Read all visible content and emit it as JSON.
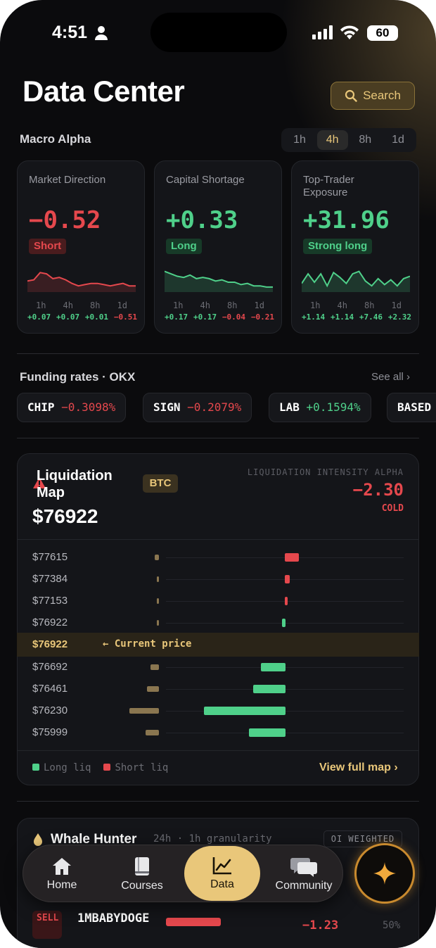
{
  "status": {
    "time": "4:51",
    "battery": "60"
  },
  "header": {
    "title": "Data Center",
    "search_label": "Search"
  },
  "macro": {
    "title": "Macro Alpha",
    "timeframes": [
      "1h",
      "4h",
      "8h",
      "1d"
    ],
    "active_timeframe": "4h",
    "cards": [
      {
        "label": "Market Direction",
        "value": "−0.52",
        "badge": "Short",
        "tf": [
          "1h",
          "4h",
          "8h",
          "1d"
        ],
        "deltas": [
          "+0.07",
          "+0.07",
          "+0.01",
          "−0.51"
        ],
        "delta_colors": [
          "#4fd08a",
          "#4fd08a",
          "#4fd08a",
          "#e5484d"
        ],
        "spark": [
          0.4,
          0.45,
          0.75,
          0.7,
          0.5,
          0.55,
          0.45,
          0.3,
          0.2,
          0.25,
          0.3,
          0.3,
          0.25,
          0.2,
          0.25,
          0.3,
          0.2,
          0.2
        ],
        "color": "#e5484d"
      },
      {
        "label": "Capital Shortage",
        "value": "+0.33",
        "badge": "Long",
        "tf": [
          "1h",
          "4h",
          "8h",
          "1d"
        ],
        "deltas": [
          "+0.17",
          "+0.17",
          "−0.04",
          "−0.21"
        ],
        "delta_colors": [
          "#4fd08a",
          "#4fd08a",
          "#e5484d",
          "#e5484d"
        ],
        "spark": [
          0.8,
          0.7,
          0.6,
          0.55,
          0.65,
          0.5,
          0.55,
          0.5,
          0.4,
          0.45,
          0.35,
          0.35,
          0.25,
          0.3,
          0.2,
          0.2,
          0.15,
          0.15
        ],
        "color": "#4fd08a"
      },
      {
        "label": "Top-Trader Exposure",
        "value": "+31.96",
        "badge": "Strong long",
        "tf": [
          "1h",
          "4h",
          "8h",
          "1d"
        ],
        "deltas": [
          "+1.14",
          "+1.14",
          "+7.46",
          "+2.32"
        ],
        "delta_colors": [
          "#4fd08a",
          "#4fd08a",
          "#4fd08a",
          "#4fd08a"
        ],
        "spark": [
          0.3,
          0.7,
          0.35,
          0.7,
          0.2,
          0.75,
          0.55,
          0.3,
          0.7,
          0.8,
          0.4,
          0.2,
          0.5,
          0.25,
          0.45,
          0.2,
          0.5,
          0.6
        ],
        "color": "#4fd08a"
      }
    ]
  },
  "funding": {
    "title": "Funding rates · OKX",
    "see_all": "See all",
    "chips": [
      {
        "symbol": "CHIP",
        "rate": "−0.3098%",
        "color": "#e5484d"
      },
      {
        "symbol": "SIGN",
        "rate": "−0.2079%",
        "color": "#e5484d"
      },
      {
        "symbol": "LAB",
        "rate": "+0.1594%",
        "color": "#4fd08a"
      },
      {
        "symbol": "BASED",
        "rate": "",
        "color": "#e5484d"
      }
    ]
  },
  "liquidation": {
    "title": "Liquidation Map",
    "asset": "BTC",
    "price": "$76922",
    "intensity_label": "LIQUIDATION INTENSITY ALPHA",
    "intensity": "−2.30",
    "intensity_state": "COLD",
    "rows_above": [
      {
        "price": "$77615",
        "oi": 0.12,
        "liq": 0.22,
        "side": "short"
      },
      {
        "price": "$77384",
        "oi": 0.04,
        "liq": 0.08,
        "side": "short"
      },
      {
        "price": "$77153",
        "oi": 0.04,
        "liq": 0.04,
        "side": "short"
      },
      {
        "price": "$76922",
        "oi": 0.04,
        "liq": 0.04,
        "side": "long"
      }
    ],
    "current_price": "$76922",
    "current_label": "← Current price",
    "rows_below": [
      {
        "price": "$76692",
        "oi": 0.25,
        "liq": 0.3,
        "side": "long"
      },
      {
        "price": "$76461",
        "oi": 0.35,
        "liq": 0.4,
        "side": "long"
      },
      {
        "price": "$76230",
        "oi": 0.85,
        "liq": 1.0,
        "side": "long"
      },
      {
        "price": "$75999",
        "oi": 0.38,
        "liq": 0.45,
        "side": "long"
      }
    ],
    "legend_long": "Long liq",
    "legend_short": "Short liq",
    "view_full": "View full map"
  },
  "whale": {
    "title": "Whale Hunter",
    "subtitle": "24h · 1h granularity",
    "badge": "OI WEIGHTED",
    "row": {
      "side": "SELL",
      "name": "1MBABYDOGE",
      "value": "−1.23",
      "pct": "50%"
    }
  },
  "tabs": [
    {
      "label": "Home",
      "icon": "home-icon"
    },
    {
      "label": "Courses",
      "icon": "book-icon"
    },
    {
      "label": "Data",
      "icon": "chart-icon"
    },
    {
      "label": "Community",
      "icon": "chat-icon"
    }
  ],
  "colors": {
    "accent": "#e9c77a",
    "long": "#4fd08a",
    "short": "#e5484d",
    "background": "#0b0b0d"
  }
}
